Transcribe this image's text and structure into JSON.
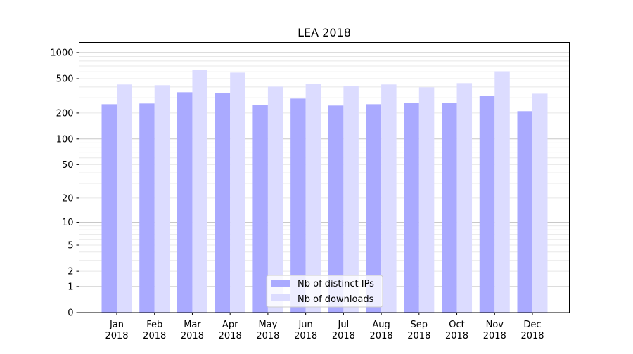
{
  "chart_data": {
    "type": "bar",
    "title": "LEA 2018",
    "xlabel": "",
    "ylabel": "",
    "yscale": "log(x+1)",
    "ylim": [
      0,
      1309
    ],
    "yticks": [
      0,
      1,
      2,
      5,
      10,
      20,
      50,
      100,
      200,
      500,
      1000
    ],
    "grid": true,
    "legend_position": "lower-center",
    "categories": [
      [
        "Jan",
        "2018"
      ],
      [
        "Feb",
        "2018"
      ],
      [
        "Mar",
        "2018"
      ],
      [
        "Apr",
        "2018"
      ],
      [
        "May",
        "2018"
      ],
      [
        "Jun",
        "2018"
      ],
      [
        "Jul",
        "2018"
      ],
      [
        "Aug",
        "2018"
      ],
      [
        "Sep",
        "2018"
      ],
      [
        "Oct",
        "2018"
      ],
      [
        "Nov",
        "2018"
      ],
      [
        "Dec",
        "2018"
      ]
    ],
    "series": [
      {
        "name": "Nb of distinct IPs",
        "color": "#aaaaff",
        "values": [
          253,
          258,
          348,
          340,
          248,
          294,
          244,
          253,
          263,
          263,
          317,
          210
        ]
      },
      {
        "name": "Nb of downloads",
        "color": "#dcdcff",
        "values": [
          428,
          420,
          633,
          587,
          404,
          435,
          412,
          428,
          397,
          444,
          609,
          335
        ]
      }
    ]
  }
}
